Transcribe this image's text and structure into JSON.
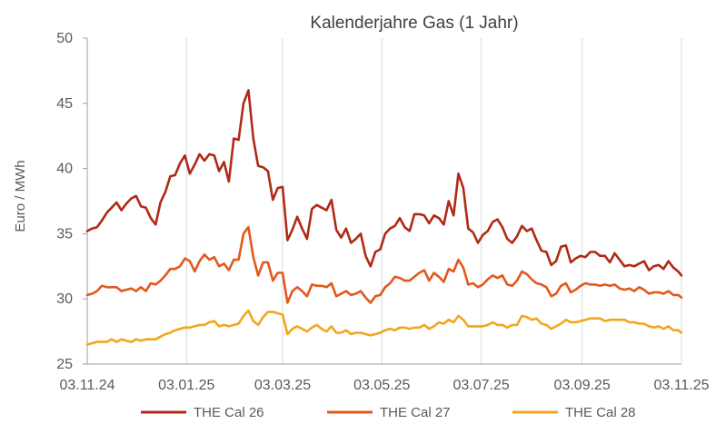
{
  "chart_data": {
    "type": "line",
    "title": "Kalenderjahre Gas (1 Jahr)",
    "ylabel": "Euro / MWh",
    "ylim": [
      25,
      50
    ],
    "yticks": [
      25,
      30,
      35,
      40,
      45,
      50
    ],
    "xlim": [
      "03.11.24",
      "03.11.25"
    ],
    "xticks": [
      "03.11.24",
      "03.01.25",
      "03.03.25",
      "03.05.25",
      "03.07.25",
      "03.09.25",
      "03.11.25"
    ],
    "grid": {
      "x": true,
      "y": false
    },
    "legend": "bottom",
    "x": [
      "03.11.24",
      "06.11.24",
      "09.11.24",
      "12.11.24",
      "15.11.24",
      "18.11.24",
      "21.11.24",
      "24.11.24",
      "27.11.24",
      "30.11.24",
      "03.12.24",
      "06.12.24",
      "09.12.24",
      "12.12.24",
      "15.12.24",
      "18.12.24",
      "21.12.24",
      "24.12.24",
      "27.12.24",
      "30.12.24",
      "02.01.25",
      "05.01.25",
      "08.01.25",
      "11.01.25",
      "14.01.25",
      "17.01.25",
      "20.01.25",
      "23.01.25",
      "26.01.25",
      "29.01.25",
      "01.02.25",
      "04.02.25",
      "07.02.25",
      "10.02.25",
      "13.02.25",
      "16.02.25",
      "19.02.25",
      "22.02.25",
      "25.02.25",
      "28.02.25",
      "03.03.25",
      "06.03.25",
      "09.03.25",
      "12.03.25",
      "15.03.25",
      "18.03.25",
      "21.03.25",
      "24.03.25",
      "27.03.25",
      "30.03.25",
      "02.04.25",
      "05.04.25",
      "08.04.25",
      "11.04.25",
      "14.04.25",
      "17.04.25",
      "20.04.25",
      "23.04.25",
      "26.04.25",
      "29.04.25",
      "02.05.25",
      "05.05.25",
      "08.05.25",
      "11.05.25",
      "14.05.25",
      "17.05.25",
      "20.05.25",
      "23.05.25",
      "26.05.25",
      "29.05.25",
      "01.06.25",
      "04.06.25",
      "07.06.25",
      "10.06.25",
      "13.06.25",
      "16.06.25",
      "19.06.25",
      "22.06.25",
      "25.06.25",
      "28.06.25",
      "01.07.25",
      "04.07.25",
      "07.07.25",
      "10.07.25",
      "13.07.25",
      "16.07.25",
      "19.07.25",
      "22.07.25",
      "25.07.25",
      "28.07.25",
      "31.07.25",
      "03.08.25",
      "06.08.25",
      "09.08.25",
      "12.08.25",
      "15.08.25",
      "18.08.25",
      "21.08.25",
      "24.08.25",
      "27.08.25",
      "30.08.25",
      "02.09.25",
      "05.09.25",
      "08.09.25",
      "11.09.25",
      "14.09.25",
      "17.09.25",
      "20.09.25",
      "23.09.25",
      "26.09.25",
      "29.09.25",
      "02.10.25",
      "05.10.25",
      "08.10.25",
      "11.10.25",
      "14.10.25",
      "17.10.25",
      "20.10.25",
      "23.10.25",
      "26.10.25",
      "29.10.25",
      "01.11.25",
      "03.11.25"
    ],
    "series": [
      {
        "name": "THE Cal 26",
        "color": "#B02A16",
        "values": [
          35.2,
          35.4,
          35.5,
          36.0,
          36.6,
          37.0,
          37.4,
          36.8,
          37.3,
          37.7,
          37.9,
          37.1,
          37.0,
          36.2,
          35.7,
          37.4,
          38.2,
          39.4,
          39.5,
          40.4,
          41.0,
          39.6,
          40.3,
          41.1,
          40.6,
          41.1,
          41.0,
          39.8,
          40.5,
          39.0,
          42.3,
          42.2,
          45.0,
          46.0,
          42.3,
          40.2,
          40.1,
          39.8,
          37.6,
          38.5,
          38.6,
          34.5,
          35.3,
          36.3,
          35.4,
          34.6,
          36.9,
          37.2,
          37.0,
          36.8,
          37.6,
          35.3,
          34.7,
          35.4,
          34.3,
          34.6,
          35.0,
          33.3,
          32.5,
          33.6,
          33.8,
          35.0,
          35.4,
          35.6,
          36.2,
          35.5,
          35.2,
          36.5,
          36.5,
          36.4,
          35.8,
          36.4,
          36.2,
          35.7,
          37.5,
          36.4,
          39.6,
          38.5,
          35.4,
          35.1,
          34.3,
          34.9,
          35.2,
          35.9,
          36.1,
          35.5,
          34.6,
          34.3,
          34.8,
          35.6,
          35.2,
          35.4,
          34.5,
          33.7,
          33.6,
          32.6,
          32.9,
          34.0,
          34.1,
          32.8,
          33.1,
          33.3,
          33.2,
          33.6,
          33.6,
          33.3,
          33.3,
          32.8,
          33.5,
          33.0,
          32.5,
          32.6,
          32.5,
          32.7,
          32.9,
          32.2,
          32.5,
          32.6,
          32.3,
          32.9,
          32.4,
          32.1,
          31.8
        ]
      },
      {
        "name": "THE Cal 27",
        "color": "#E2581E",
        "values": [
          30.3,
          30.4,
          30.6,
          31.0,
          30.9,
          30.9,
          30.9,
          30.6,
          30.7,
          30.8,
          30.6,
          30.9,
          30.6,
          31.2,
          31.1,
          31.4,
          31.8,
          32.3,
          32.3,
          32.5,
          33.1,
          32.9,
          32.1,
          32.9,
          33.4,
          33.0,
          33.2,
          32.5,
          32.7,
          32.2,
          33.0,
          33.0,
          35.0,
          35.5,
          33.2,
          31.8,
          32.8,
          32.8,
          31.4,
          32.0,
          32.0,
          29.7,
          30.6,
          30.9,
          30.6,
          30.2,
          31.1,
          31.0,
          31.0,
          30.9,
          31.2,
          30.2,
          30.4,
          30.6,
          30.3,
          30.4,
          30.6,
          30.1,
          29.7,
          30.2,
          30.3,
          30.9,
          31.2,
          31.7,
          31.6,
          31.4,
          31.4,
          31.7,
          32.0,
          32.2,
          31.4,
          32.0,
          31.7,
          31.3,
          32.3,
          32.1,
          33.0,
          32.4,
          31.1,
          31.2,
          30.9,
          31.1,
          31.5,
          31.8,
          31.6,
          31.8,
          31.1,
          31.0,
          31.4,
          32.1,
          31.9,
          31.5,
          31.2,
          31.1,
          30.9,
          30.2,
          30.4,
          31.0,
          31.2,
          30.5,
          30.7,
          31.0,
          31.2,
          31.1,
          31.1,
          31.0,
          31.1,
          31.0,
          31.1,
          30.8,
          30.7,
          30.8,
          30.6,
          30.9,
          30.7,
          30.4,
          30.5,
          30.5,
          30.4,
          30.6,
          30.3,
          30.3,
          30.1
        ]
      },
      {
        "name": "THE Cal 28",
        "color": "#F2A61E",
        "values": [
          26.5,
          26.6,
          26.7,
          26.7,
          26.7,
          26.9,
          26.7,
          26.9,
          26.8,
          26.7,
          26.9,
          26.8,
          26.9,
          26.9,
          26.9,
          27.1,
          27.3,
          27.4,
          27.6,
          27.7,
          27.8,
          27.8,
          27.9,
          28.0,
          28.0,
          28.2,
          28.3,
          27.9,
          28.0,
          27.9,
          28.0,
          28.1,
          28.7,
          29.1,
          28.3,
          28.0,
          28.6,
          29.0,
          29.0,
          28.9,
          28.8,
          27.3,
          27.7,
          27.9,
          27.7,
          27.5,
          27.8,
          28.0,
          27.7,
          27.5,
          27.9,
          27.4,
          27.4,
          27.6,
          27.3,
          27.4,
          27.4,
          27.3,
          27.2,
          27.3,
          27.4,
          27.6,
          27.7,
          27.6,
          27.8,
          27.8,
          27.7,
          27.8,
          27.8,
          28.0,
          27.7,
          27.9,
          28.2,
          28.1,
          28.4,
          28.2,
          28.7,
          28.4,
          27.9,
          27.9,
          27.9,
          27.9,
          28.0,
          28.2,
          28.0,
          28.0,
          27.8,
          28.0,
          28.0,
          28.7,
          28.6,
          28.4,
          28.5,
          28.1,
          28.0,
          27.7,
          27.9,
          28.1,
          28.4,
          28.2,
          28.2,
          28.3,
          28.4,
          28.5,
          28.5,
          28.5,
          28.3,
          28.4,
          28.4,
          28.4,
          28.4,
          28.2,
          28.2,
          28.1,
          28.1,
          27.9,
          27.8,
          27.9,
          27.7,
          27.9,
          27.6,
          27.6,
          27.4
        ]
      }
    ]
  }
}
